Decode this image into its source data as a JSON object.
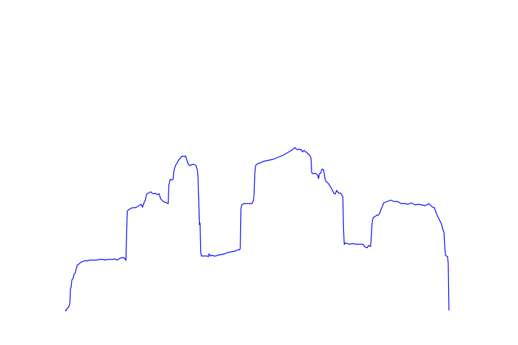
{
  "chart_data": {
    "type": "line",
    "title": "",
    "xlabel": "",
    "ylabel": "",
    "axes_visible": false,
    "grid": false,
    "legend": "none",
    "xlim": [
      0,
      560
    ],
    "ylim": [
      0,
      450
    ],
    "series": [
      {
        "color": "#0000ff",
        "points": [
          [
            0,
            0
          ],
          [
            2,
            0
          ],
          [
            3,
            3
          ],
          [
            5,
            4
          ],
          [
            6,
            7
          ],
          [
            7,
            9
          ],
          [
            8,
            31
          ],
          [
            9,
            34
          ],
          [
            10,
            44
          ],
          [
            12,
            47
          ],
          [
            13,
            52
          ],
          [
            14,
            53
          ],
          [
            15,
            55
          ],
          [
            16,
            60
          ],
          [
            18,
            66
          ],
          [
            21,
            68
          ],
          [
            23,
            70
          ],
          [
            26,
            71
          ],
          [
            28,
            72
          ],
          [
            32,
            72
          ],
          [
            36,
            73
          ],
          [
            40,
            73
          ],
          [
            45,
            73
          ],
          [
            50,
            74
          ],
          [
            55,
            74
          ],
          [
            58,
            73
          ],
          [
            61,
            74
          ],
          [
            65,
            74
          ],
          [
            70,
            74
          ],
          [
            72,
            75
          ],
          [
            75,
            73
          ],
          [
            80,
            76
          ],
          [
            85,
            77
          ],
          [
            88,
            73
          ],
          [
            89,
            110
          ],
          [
            90,
            144
          ],
          [
            92,
            146
          ],
          [
            95,
            148
          ],
          [
            98,
            149
          ],
          [
            101,
            149
          ],
          [
            104,
            150
          ],
          [
            107,
            152
          ],
          [
            110,
            154
          ],
          [
            112,
            150
          ],
          [
            114,
            156
          ],
          [
            116,
            160
          ],
          [
            118,
            169
          ],
          [
            120,
            170
          ],
          [
            122,
            171
          ],
          [
            124,
            172
          ],
          [
            126,
            170
          ],
          [
            128,
            169
          ],
          [
            130,
            170
          ],
          [
            133,
            168
          ],
          [
            136,
            169
          ],
          [
            138,
            162
          ],
          [
            140,
            160
          ],
          [
            142,
            158
          ],
          [
            144,
            157
          ],
          [
            147,
            156
          ],
          [
            149,
            155
          ],
          [
            150,
            182
          ],
          [
            152,
            190
          ],
          [
            154,
            189
          ],
          [
            156,
            190
          ],
          [
            157,
            200
          ],
          [
            158,
            206
          ],
          [
            160,
            211
          ],
          [
            162,
            214
          ],
          [
            164,
            218
          ],
          [
            166,
            220
          ],
          [
            168,
            223
          ],
          [
            170,
            224
          ],
          [
            172,
            223
          ],
          [
            174,
            224
          ],
          [
            176,
            218
          ],
          [
            178,
            212
          ],
          [
            180,
            210
          ],
          [
            182,
            211
          ],
          [
            186,
            212
          ],
          [
            189,
            210
          ],
          [
            191,
            204
          ],
          [
            192,
            195
          ],
          [
            193,
            162
          ],
          [
            194,
            125
          ],
          [
            195,
            126
          ],
          [
            196,
            84
          ],
          [
            197,
            79
          ],
          [
            200,
            79
          ],
          [
            203,
            79
          ],
          [
            205,
            79
          ],
          [
            207,
            78
          ],
          [
            208,
            82
          ],
          [
            210,
            79
          ],
          [
            212,
            80
          ],
          [
            215,
            79
          ],
          [
            218,
            79
          ],
          [
            220,
            80
          ],
          [
            225,
            81
          ],
          [
            230,
            82
          ],
          [
            235,
            84
          ],
          [
            240,
            85
          ],
          [
            245,
            86
          ],
          [
            250,
            88
          ],
          [
            252,
            88
          ],
          [
            253,
            90
          ],
          [
            254,
            148
          ],
          [
            255,
            153
          ],
          [
            258,
            155
          ],
          [
            263,
            155
          ],
          [
            267,
            155
          ],
          [
            270,
            155
          ],
          [
            272,
            160
          ],
          [
            273,
            170
          ],
          [
            274,
            200
          ],
          [
            275,
            210
          ],
          [
            278,
            213
          ],
          [
            282,
            214
          ],
          [
            286,
            216
          ],
          [
            290,
            217
          ],
          [
            295,
            218
          ],
          [
            300,
            219
          ],
          [
            305,
            221
          ],
          [
            310,
            223
          ],
          [
            315,
            225
          ],
          [
            320,
            228
          ],
          [
            325,
            231
          ],
          [
            328,
            233
          ],
          [
            332,
            236
          ],
          [
            335,
            233
          ],
          [
            338,
            234
          ],
          [
            341,
            233
          ],
          [
            343,
            230
          ],
          [
            345,
            232
          ],
          [
            350,
            228
          ],
          [
            353,
            225
          ],
          [
            355,
            221
          ],
          [
            356,
            200
          ],
          [
            358,
            198
          ],
          [
            360,
            199
          ],
          [
            363,
            198
          ],
          [
            365,
            195
          ],
          [
            366,
            191
          ],
          [
            367,
            198
          ],
          [
            369,
            199
          ],
          [
            371,
            205
          ],
          [
            373,
            204
          ],
          [
            376,
            188
          ],
          [
            380,
            184
          ],
          [
            384,
            178
          ],
          [
            386,
            174
          ],
          [
            388,
            170
          ],
          [
            390,
            169
          ],
          [
            392,
            174
          ],
          [
            395,
            170
          ],
          [
            398,
            170
          ],
          [
            401,
            165
          ],
          [
            402,
            118
          ],
          [
            403,
            96
          ],
          [
            405,
            98
          ],
          [
            410,
            96
          ],
          [
            415,
            97
          ],
          [
            420,
            96
          ],
          [
            425,
            96
          ],
          [
            430,
            96
          ],
          [
            433,
            92
          ],
          [
            436,
            91
          ],
          [
            438,
            94
          ],
          [
            441,
            93
          ],
          [
            442,
            108
          ],
          [
            443,
            125
          ],
          [
            444,
            132
          ],
          [
            445,
            135
          ],
          [
            447,
            136
          ],
          [
            450,
            138
          ],
          [
            452,
            138
          ],
          [
            454,
            141
          ],
          [
            456,
            146
          ],
          [
            458,
            151
          ],
          [
            460,
            156
          ],
          [
            465,
            158
          ],
          [
            470,
            160
          ],
          [
            475,
            158
          ],
          [
            480,
            158
          ],
          [
            485,
            155
          ],
          [
            490,
            155
          ],
          [
            495,
            154
          ],
          [
            500,
            156
          ],
          [
            505,
            153
          ],
          [
            510,
            154
          ],
          [
            515,
            153
          ],
          [
            520,
            152
          ],
          [
            525,
            155
          ],
          [
            527,
            153
          ],
          [
            530,
            150
          ],
          [
            533,
            149
          ],
          [
            535,
            143
          ],
          [
            538,
            136
          ],
          [
            541,
            130
          ],
          [
            543,
            126
          ],
          [
            544,
            123
          ],
          [
            545,
            118
          ],
          [
            546,
            116
          ],
          [
            547,
            112
          ],
          [
            548,
            90
          ],
          [
            549,
            80
          ],
          [
            552,
            78
          ],
          [
            553,
            68
          ],
          [
            554,
            0
          ]
        ]
      }
    ]
  }
}
